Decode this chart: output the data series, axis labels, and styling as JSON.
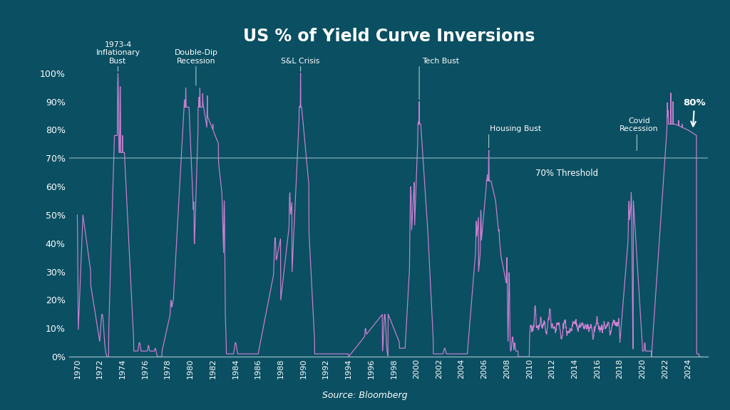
{
  "title": "US % of Yield Curve Inversions",
  "source": "Source: Bloomberg",
  "background_color": "#0b4f62",
  "line_color": "#d884d8",
  "threshold_line_color": "#8ab4c0",
  "text_color": "#ffffff",
  "annotation_line_color": "#aacccc",
  "threshold": 70,
  "ylim": [
    0,
    107
  ],
  "yticks": [
    0,
    10,
    20,
    30,
    40,
    50,
    60,
    70,
    80,
    90,
    100
  ],
  "xlim": [
    1969.3,
    2025.8
  ],
  "xtick_start": 1970,
  "xtick_end": 2025,
  "xtick_step": 2
}
